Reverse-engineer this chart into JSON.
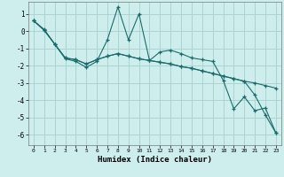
{
  "xlabel": "Humidex (Indice chaleur)",
  "bg_color": "#ceeeed",
  "grid_color": "#aad4d2",
  "line_color": "#1a6b6b",
  "xlim": [
    -0.5,
    23.5
  ],
  "ylim": [
    -6.6,
    1.7
  ],
  "xticks": [
    0,
    1,
    2,
    3,
    4,
    5,
    6,
    7,
    8,
    9,
    10,
    11,
    12,
    13,
    14,
    15,
    16,
    17,
    18,
    19,
    20,
    21,
    22,
    23
  ],
  "yticks": [
    1,
    0,
    -1,
    -2,
    -3,
    -4,
    -5,
    -6
  ],
  "line1_x": [
    0,
    1,
    2,
    3,
    4,
    5,
    6,
    7,
    8,
    9,
    10,
    11,
    12,
    13,
    14,
    15,
    16,
    17,
    18,
    19,
    20,
    21,
    22,
    23
  ],
  "line1_y": [
    0.6,
    0.1,
    -0.75,
    -1.6,
    -1.75,
    -2.1,
    -1.75,
    -0.5,
    1.4,
    -0.5,
    1.0,
    -1.7,
    -1.2,
    -1.1,
    -1.3,
    -1.55,
    -1.65,
    -1.75,
    -2.85,
    -4.5,
    -3.8,
    -4.6,
    -4.45,
    -5.9
  ],
  "line2_x": [
    0,
    1,
    2,
    3,
    4,
    5,
    6,
    7,
    8,
    9,
    10,
    11,
    12,
    13,
    14,
    15,
    16,
    17,
    18,
    19,
    20,
    21,
    22,
    23
  ],
  "line2_y": [
    0.6,
    0.05,
    -0.75,
    -1.55,
    -1.65,
    -1.9,
    -1.65,
    -1.45,
    -1.3,
    -1.45,
    -1.6,
    -1.7,
    -1.8,
    -1.9,
    -2.05,
    -2.15,
    -2.3,
    -2.45,
    -2.6,
    -2.75,
    -2.9,
    -3.0,
    -3.15,
    -3.3
  ],
  "line3_x": [
    0,
    1,
    2,
    3,
    4,
    5,
    6,
    7,
    8,
    9,
    10,
    11,
    12,
    13,
    14,
    15,
    16,
    17,
    18,
    19,
    20,
    21,
    22,
    23
  ],
  "line3_y": [
    0.6,
    0.05,
    -0.75,
    -1.55,
    -1.65,
    -1.9,
    -1.65,
    -1.45,
    -1.3,
    -1.45,
    -1.6,
    -1.7,
    -1.8,
    -1.9,
    -2.05,
    -2.15,
    -2.3,
    -2.45,
    -2.6,
    -2.75,
    -2.9,
    -3.7,
    -4.85,
    -5.9
  ]
}
